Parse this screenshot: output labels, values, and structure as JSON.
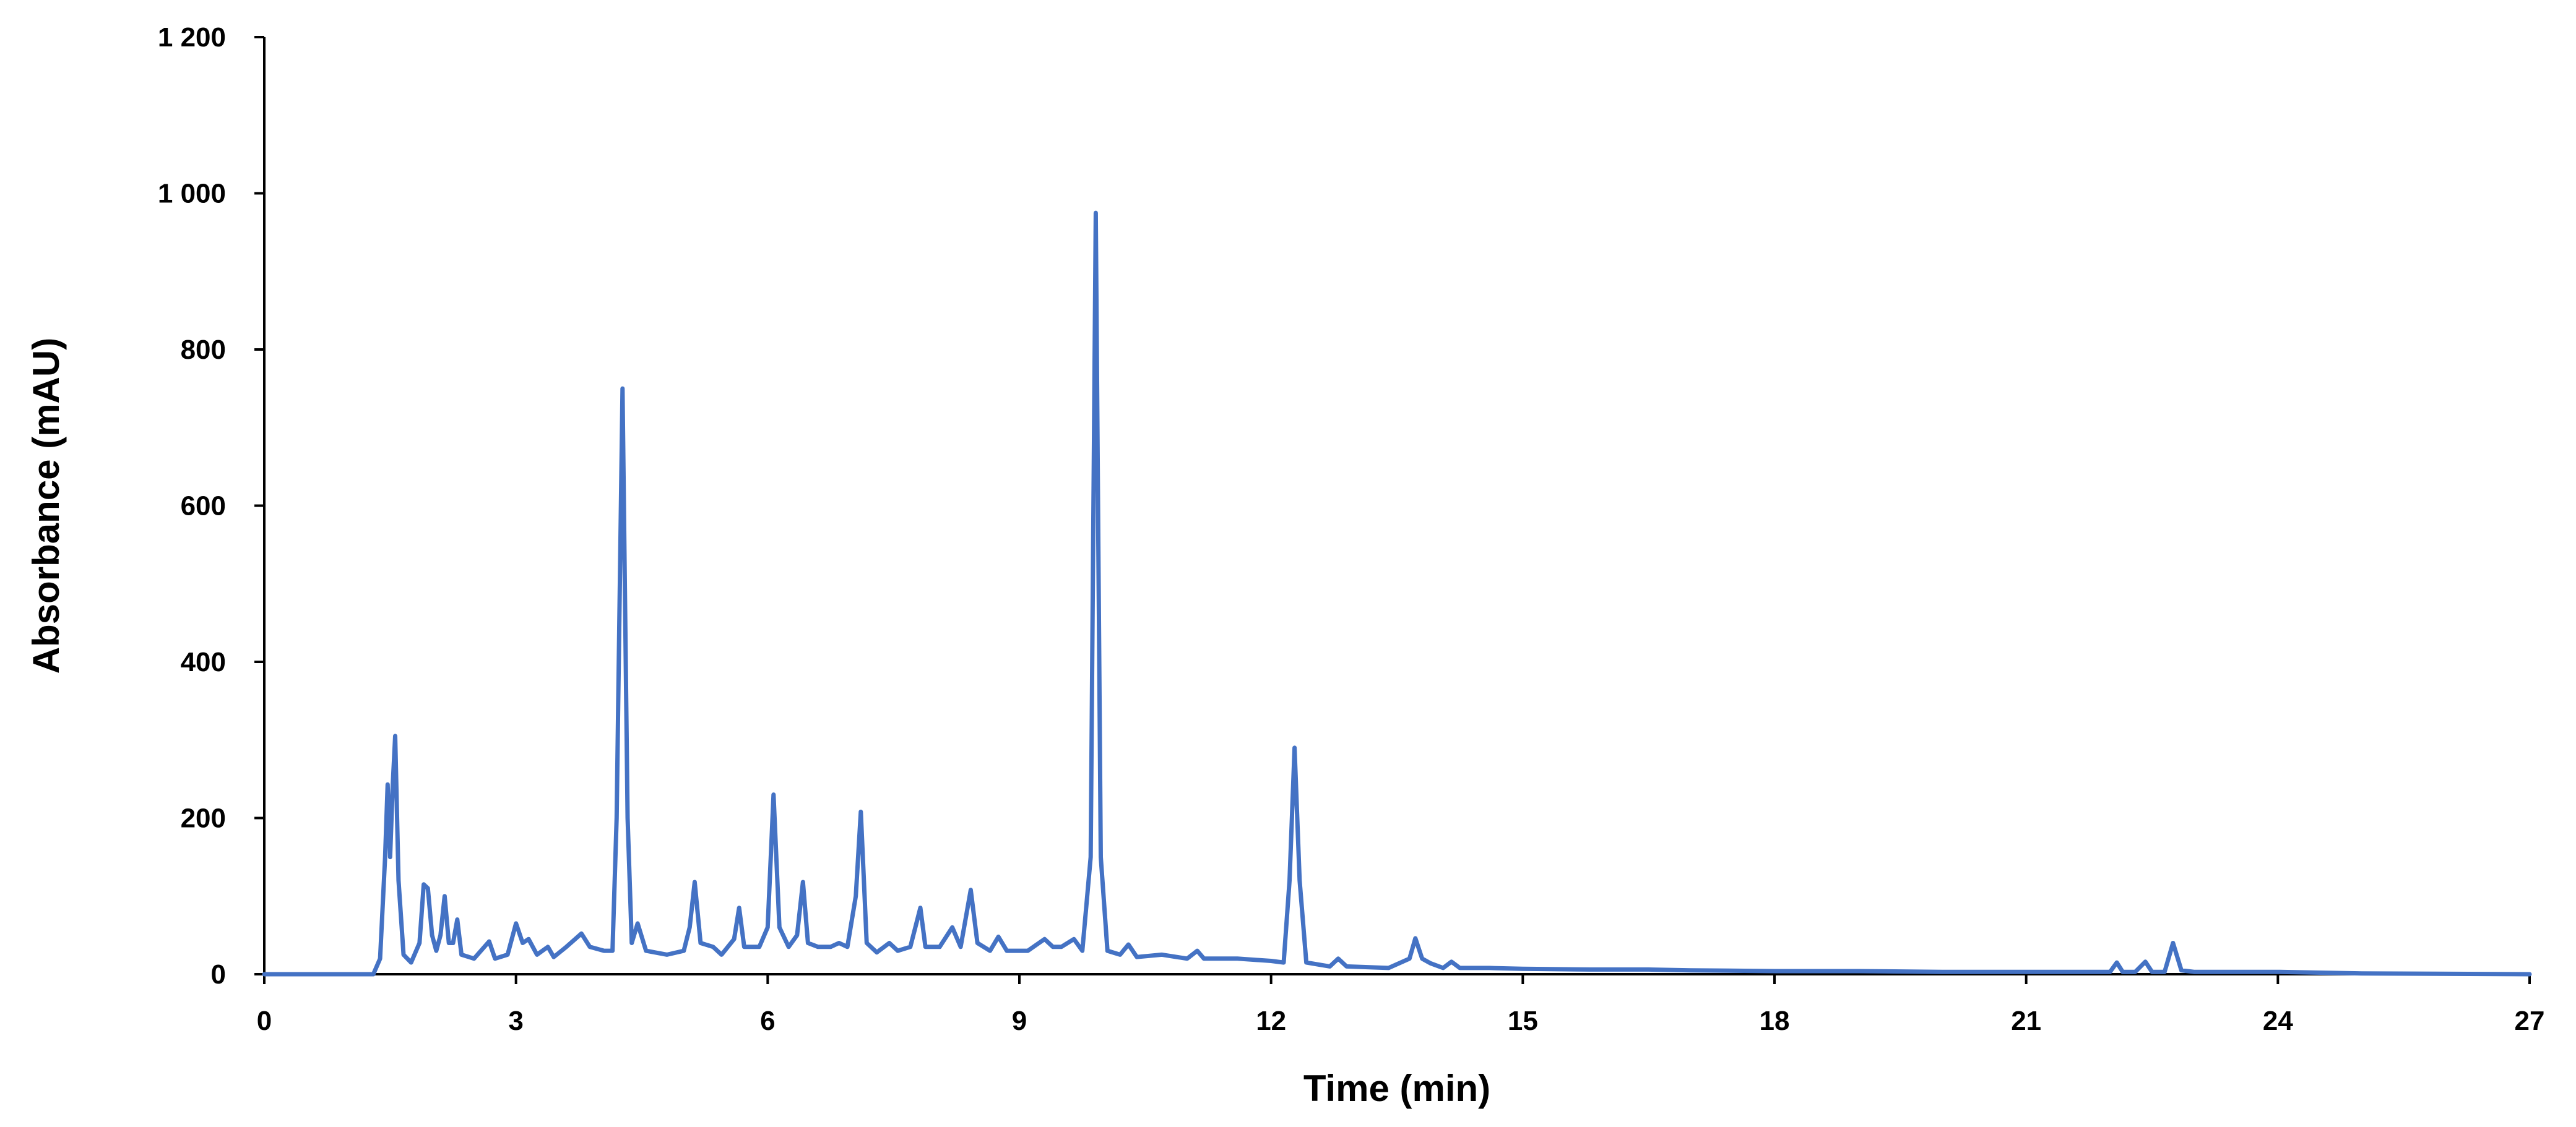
{
  "chart_data": {
    "type": "line",
    "title": "",
    "xlabel": "Time (min)",
    "ylabel": "Absorbance (mAU)",
    "xlim": [
      0,
      27
    ],
    "ylim": [
      0,
      1200
    ],
    "x_ticks": [
      0,
      3,
      6,
      9,
      12,
      15,
      18,
      21,
      24,
      27
    ],
    "x_tick_labels": [
      "0",
      "3",
      "6",
      "9",
      "12",
      "15",
      "18",
      "21",
      "24",
      "27"
    ],
    "y_ticks": [
      0,
      200,
      400,
      600,
      800,
      1000,
      1200
    ],
    "y_tick_labels": [
      "0",
      "200",
      "400",
      "600",
      "800",
      "1 000",
      "1 200"
    ],
    "grid": false,
    "legend": "none",
    "line_color": "#4472C4",
    "series": [
      {
        "points": [
          [
            0,
            0
          ],
          [
            1.3,
            0
          ],
          [
            1.38,
            20
          ],
          [
            1.44,
            150
          ],
          [
            1.47,
            243
          ],
          [
            1.5,
            150
          ],
          [
            1.53,
            240
          ],
          [
            1.56,
            305
          ],
          [
            1.6,
            120
          ],
          [
            1.66,
            25
          ],
          [
            1.75,
            15
          ],
          [
            1.85,
            40
          ],
          [
            1.9,
            115
          ],
          [
            1.95,
            110
          ],
          [
            2.0,
            50
          ],
          [
            2.05,
            30
          ],
          [
            2.1,
            50
          ],
          [
            2.15,
            100
          ],
          [
            2.2,
            40
          ],
          [
            2.25,
            40
          ],
          [
            2.3,
            70
          ],
          [
            2.35,
            25
          ],
          [
            2.5,
            20
          ],
          [
            2.68,
            42
          ],
          [
            2.75,
            20
          ],
          [
            2.9,
            25
          ],
          [
            3.0,
            65
          ],
          [
            3.08,
            40
          ],
          [
            3.15,
            45
          ],
          [
            3.25,
            25
          ],
          [
            3.38,
            35
          ],
          [
            3.45,
            22
          ],
          [
            3.6,
            35
          ],
          [
            3.78,
            52
          ],
          [
            3.88,
            35
          ],
          [
            4.05,
            30
          ],
          [
            4.15,
            30
          ],
          [
            4.2,
            200
          ],
          [
            4.27,
            750
          ],
          [
            4.33,
            200
          ],
          [
            4.38,
            40
          ],
          [
            4.45,
            65
          ],
          [
            4.55,
            30
          ],
          [
            4.8,
            25
          ],
          [
            5.0,
            30
          ],
          [
            5.07,
            60
          ],
          [
            5.13,
            118
          ],
          [
            5.2,
            40
          ],
          [
            5.35,
            35
          ],
          [
            5.45,
            25
          ],
          [
            5.6,
            45
          ],
          [
            5.66,
            85
          ],
          [
            5.72,
            35
          ],
          [
            5.9,
            35
          ],
          [
            6.0,
            60
          ],
          [
            6.07,
            230
          ],
          [
            6.14,
            60
          ],
          [
            6.25,
            35
          ],
          [
            6.35,
            50
          ],
          [
            6.42,
            118
          ],
          [
            6.48,
            40
          ],
          [
            6.6,
            35
          ],
          [
            6.75,
            35
          ],
          [
            6.85,
            40
          ],
          [
            6.95,
            35
          ],
          [
            7.05,
            100
          ],
          [
            7.11,
            208
          ],
          [
            7.18,
            40
          ],
          [
            7.3,
            28
          ],
          [
            7.45,
            40
          ],
          [
            7.55,
            30
          ],
          [
            7.7,
            35
          ],
          [
            7.82,
            85
          ],
          [
            7.88,
            35
          ],
          [
            8.05,
            35
          ],
          [
            8.2,
            60
          ],
          [
            8.3,
            35
          ],
          [
            8.42,
            108
          ],
          [
            8.5,
            40
          ],
          [
            8.65,
            30
          ],
          [
            8.75,
            48
          ],
          [
            8.85,
            30
          ],
          [
            9.1,
            30
          ],
          [
            9.3,
            45
          ],
          [
            9.4,
            35
          ],
          [
            9.5,
            35
          ],
          [
            9.65,
            45
          ],
          [
            9.75,
            30
          ],
          [
            9.85,
            150
          ],
          [
            9.91,
            975
          ],
          [
            9.97,
            150
          ],
          [
            10.05,
            30
          ],
          [
            10.2,
            25
          ],
          [
            10.3,
            38
          ],
          [
            10.4,
            22
          ],
          [
            10.7,
            25
          ],
          [
            11.0,
            20
          ],
          [
            11.12,
            30
          ],
          [
            11.2,
            20
          ],
          [
            11.6,
            20
          ],
          [
            12.0,
            17
          ],
          [
            12.15,
            15
          ],
          [
            12.22,
            120
          ],
          [
            12.28,
            290
          ],
          [
            12.34,
            120
          ],
          [
            12.42,
            15
          ],
          [
            12.7,
            10
          ],
          [
            12.8,
            20
          ],
          [
            12.9,
            10
          ],
          [
            13.4,
            8
          ],
          [
            13.65,
            20
          ],
          [
            13.72,
            46
          ],
          [
            13.8,
            20
          ],
          [
            13.9,
            14
          ],
          [
            14.05,
            8
          ],
          [
            14.15,
            16
          ],
          [
            14.25,
            8
          ],
          [
            14.6,
            8
          ],
          [
            15.0,
            7
          ],
          [
            15.8,
            6
          ],
          [
            16.5,
            6
          ],
          [
            17.0,
            5
          ],
          [
            18.0,
            4
          ],
          [
            19.0,
            4
          ],
          [
            20.0,
            3
          ],
          [
            21.0,
            3
          ],
          [
            22.0,
            3
          ],
          [
            22.08,
            15
          ],
          [
            22.15,
            3
          ],
          [
            22.3,
            3
          ],
          [
            22.42,
            16
          ],
          [
            22.5,
            3
          ],
          [
            22.65,
            3
          ],
          [
            22.75,
            40
          ],
          [
            22.85,
            5
          ],
          [
            23.0,
            3
          ],
          [
            24.0,
            3
          ],
          [
            24.5,
            2
          ],
          [
            25.0,
            1
          ],
          [
            27.0,
            0
          ]
        ]
      }
    ]
  }
}
